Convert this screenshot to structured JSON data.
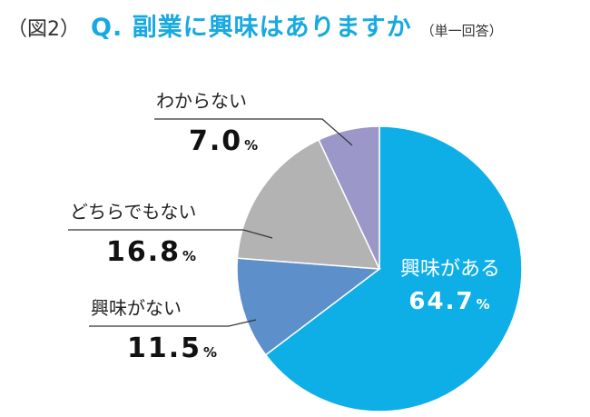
{
  "header": {
    "fig_label": "（図2）",
    "title": "Q. 副業に興味はありますか",
    "note": "（単一回答）"
  },
  "colors": {
    "title": "#17a9e1",
    "leader": "#333333"
  },
  "chart_data": {
    "type": "pie",
    "unit": "%",
    "start_angle_deg": 0,
    "direction": "clockwise",
    "slices": [
      {
        "label": "興味がある",
        "value": 64.7,
        "value_text": "64.7",
        "color": "#0eaee6"
      },
      {
        "label": "興味がない",
        "value": 11.5,
        "value_text": "11.5",
        "color": "#5d8fcb"
      },
      {
        "label": "どちらでもない",
        "value": 16.8,
        "value_text": "16.8",
        "color": "#b3b3b3"
      },
      {
        "label": "わからない",
        "value": 7.0,
        "value_text": "7.0",
        "color": "#9b98c9"
      }
    ]
  }
}
